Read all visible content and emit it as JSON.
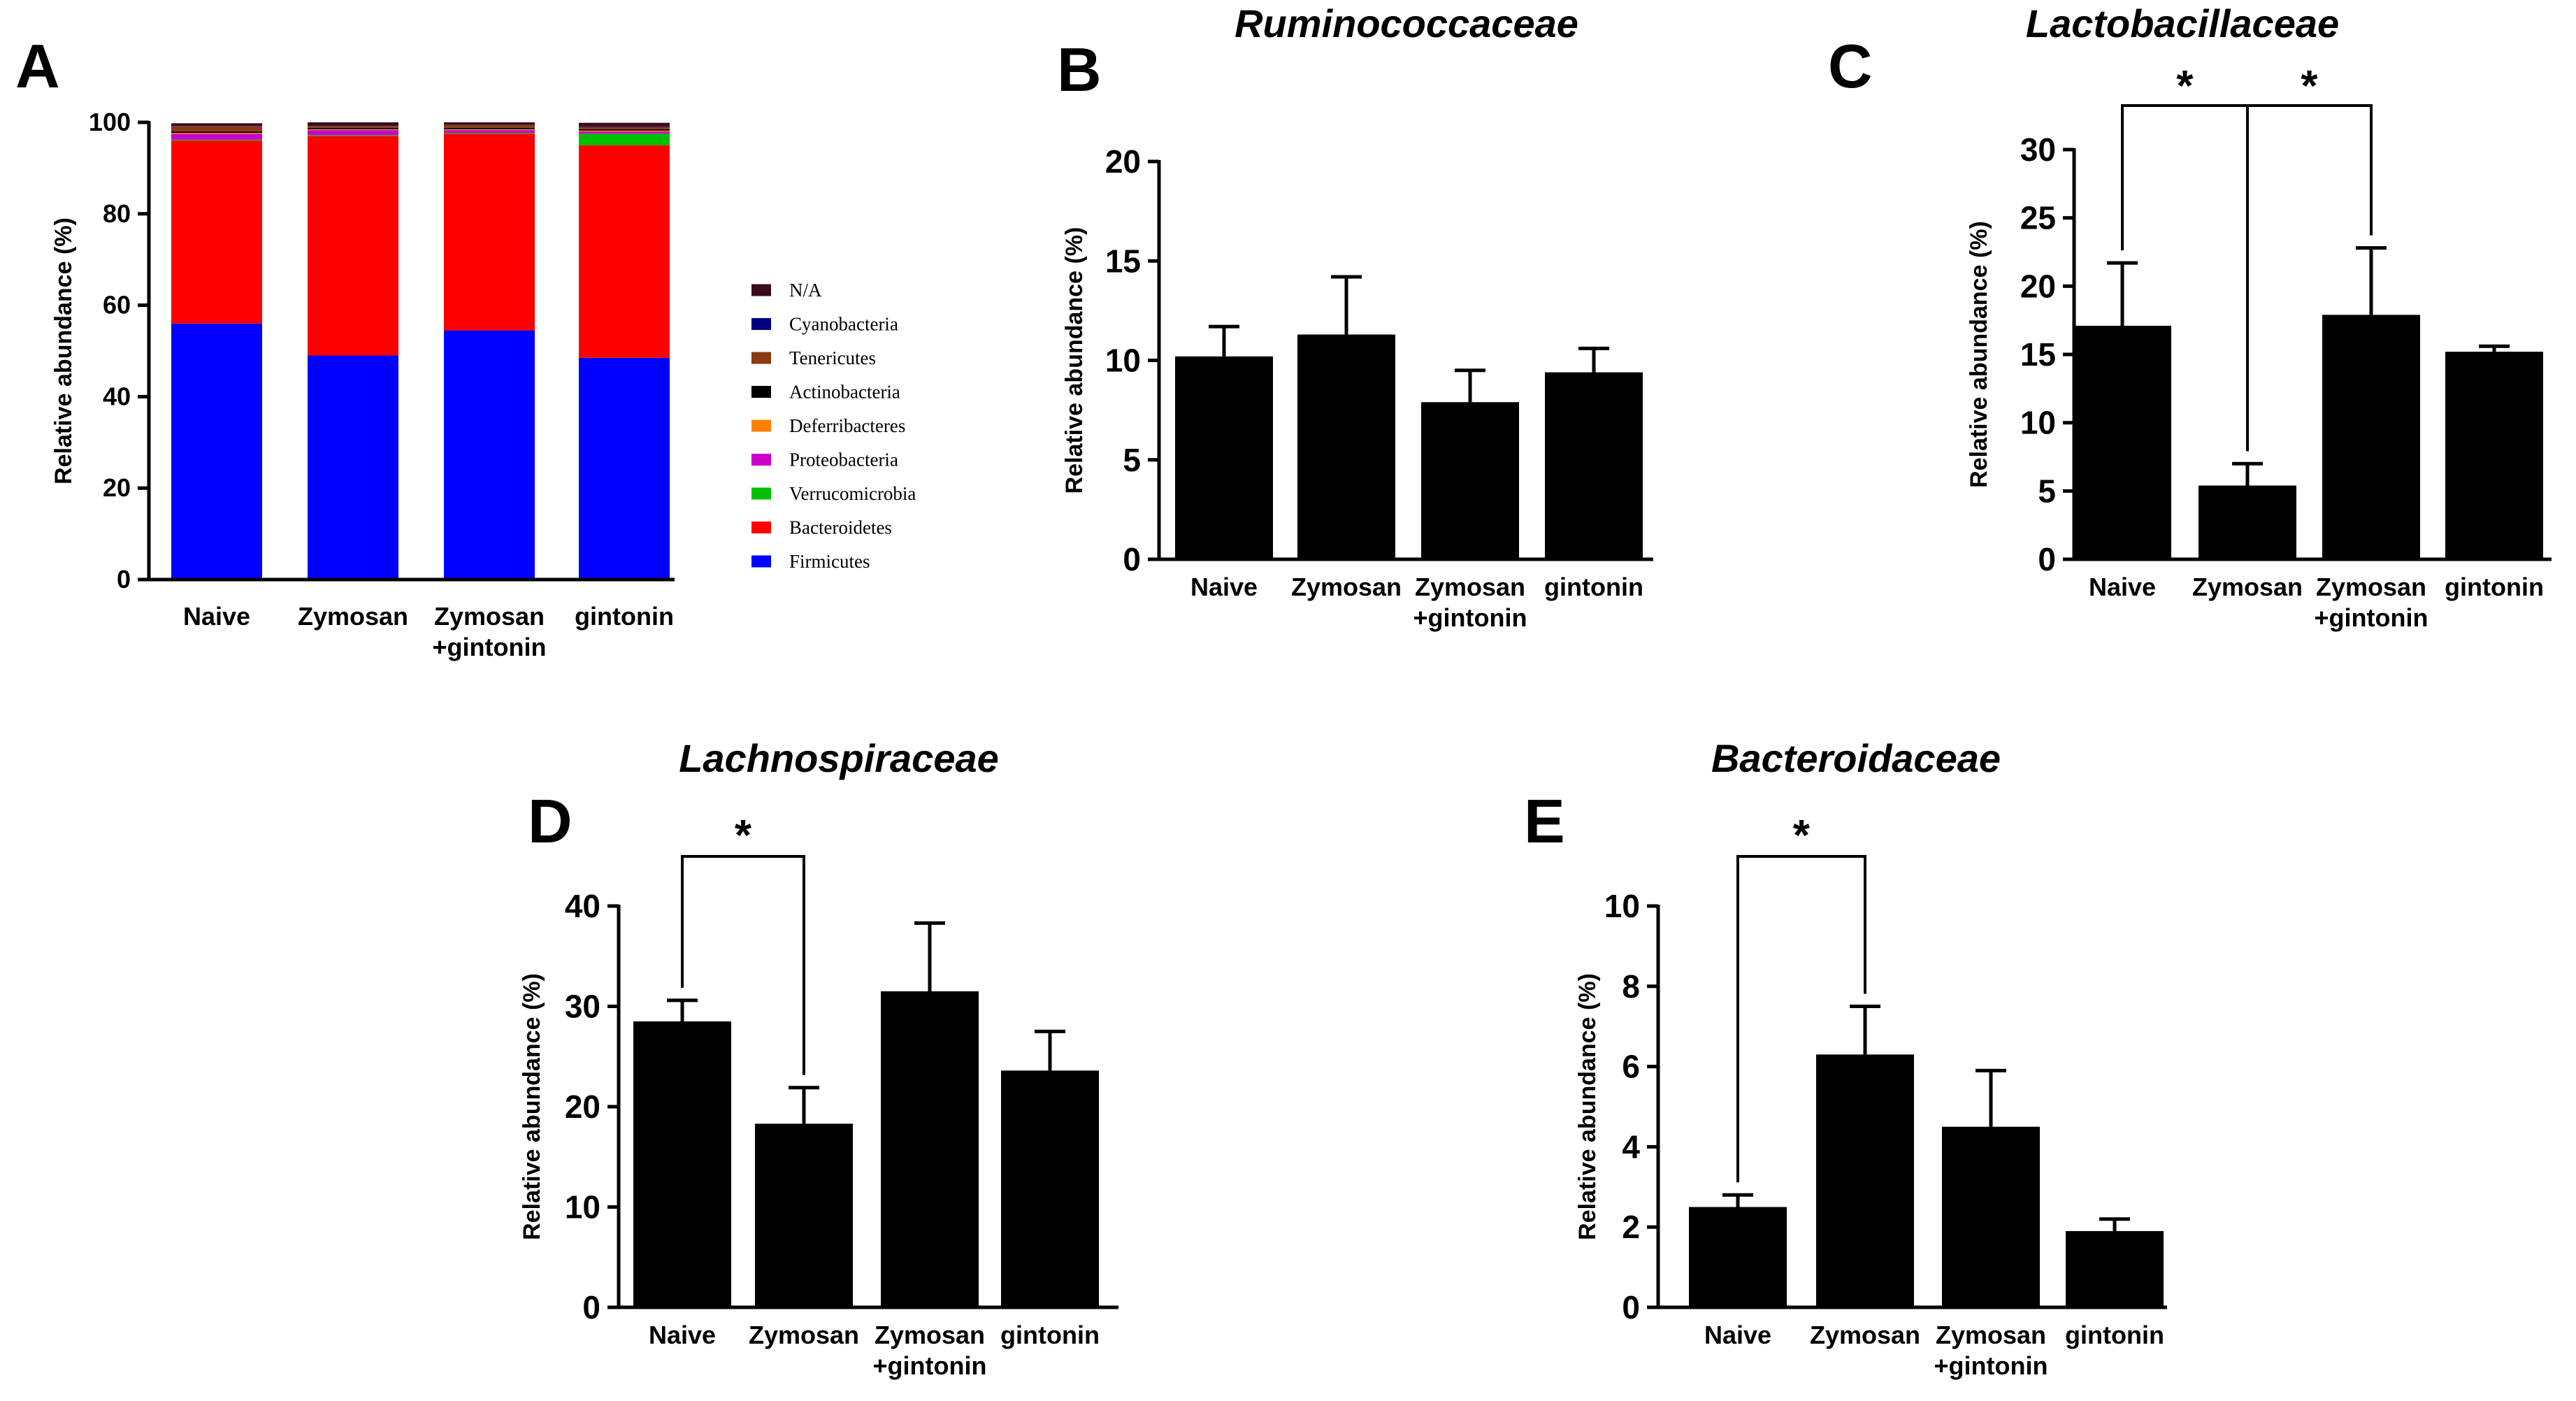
{
  "chart_data": [
    {
      "panel": "A",
      "type": "bar",
      "stacked": true,
      "title": "",
      "xlabel": "",
      "ylabel": "Relative abundance (%)",
      "ylim": [
        0,
        100
      ],
      "yticks": [
        "0",
        "20",
        "40",
        "60",
        "80",
        "100"
      ],
      "categories": [
        "Naive",
        "Zymosan",
        "Zymosan\n+gintonin",
        "gintonin"
      ],
      "legend_position": "right",
      "series": [
        {
          "name": "Firmicutes",
          "color": "#0000ff",
          "values": [
            56,
            49,
            54.5,
            48.5
          ]
        },
        {
          "name": "Bacteroidetes",
          "color": "#ff0000",
          "values": [
            40,
            48,
            43,
            46.5
          ]
        },
        {
          "name": "Verrucomicrobia",
          "color": "#00c000",
          "values": [
            0.2,
            0.2,
            0.2,
            2.5
          ]
        },
        {
          "name": "Proteobacteria",
          "color": "#cc00cc",
          "values": [
            1.3,
            1.1,
            0.6,
            0.5
          ]
        },
        {
          "name": "Deferribacteres",
          "color": "#ff8000",
          "values": [
            0.2,
            0.2,
            0.2,
            0.2
          ]
        },
        {
          "name": "Actinobacteria",
          "color": "#000000",
          "values": [
            0.3,
            0.3,
            0.3,
            0.3
          ]
        },
        {
          "name": "Tenericutes",
          "color": "#8b3a12",
          "values": [
            1.2,
            0.4,
            0.6,
            0.5
          ]
        },
        {
          "name": "Cyanobacteria",
          "color": "#000080",
          "values": [
            0.1,
            0.1,
            0.1,
            0.1
          ]
        },
        {
          "name": "N/A",
          "color": "#3a0a1a",
          "values": [
            0.5,
            0.7,
            0.5,
            0.8
          ]
        }
      ]
    },
    {
      "panel": "B",
      "type": "bar",
      "title": "Ruminococcaceae",
      "xlabel": "",
      "ylabel": "Relative abundance (%)",
      "ylim": [
        0,
        20
      ],
      "yticks": [
        "0",
        "5",
        "10",
        "15",
        "20"
      ],
      "categories": [
        "Naive",
        "Zymosan",
        "Zymosan\n+gintonin",
        "gintonin"
      ],
      "values": [
        10.2,
        11.3,
        7.9,
        9.4
      ],
      "errors": [
        1.5,
        2.9,
        1.6,
        1.2
      ],
      "significance": []
    },
    {
      "panel": "C",
      "type": "bar",
      "title": "Lactobacillaceae",
      "xlabel": "",
      "ylabel": "Relative abundance (%)",
      "ylim": [
        0,
        30
      ],
      "yticks": [
        "0",
        "5",
        "10",
        "15",
        "20",
        "25",
        "30"
      ],
      "categories": [
        "Naive",
        "Zymosan",
        "Zymosan\n+gintonin",
        "gintonin"
      ],
      "values": [
        17.1,
        5.4,
        17.9,
        15.2
      ],
      "errors": [
        4.6,
        1.6,
        4.9,
        0.4
      ],
      "significance": [
        {
          "from": 0,
          "to": 1,
          "label": "*"
        },
        {
          "from": 1,
          "to": 2,
          "label": "*"
        }
      ]
    },
    {
      "panel": "D",
      "type": "bar",
      "title": "Lachnospiraceae",
      "xlabel": "",
      "ylabel": "Relative abundance (%)",
      "ylim": [
        0,
        40
      ],
      "yticks": [
        "0",
        "10",
        "20",
        "30",
        "40"
      ],
      "categories": [
        "Naive",
        "Zymosan",
        "Zymosan\n+gintonin",
        "gintonin"
      ],
      "values": [
        28.5,
        18.3,
        31.5,
        23.6
      ],
      "errors": [
        2.1,
        3.6,
        6.8,
        3.9
      ],
      "significance": [
        {
          "from": 0,
          "to": 1,
          "label": "*"
        }
      ]
    },
    {
      "panel": "E",
      "type": "bar",
      "title": "Bacteroidaceae",
      "xlabel": "",
      "ylabel": "Relative abundance (%)",
      "ylim": [
        0,
        10
      ],
      "yticks": [
        "0",
        "2",
        "4",
        "6",
        "8",
        "10"
      ],
      "categories": [
        "Naive",
        "Zymosan",
        "Zymosan\n+gintonin",
        "gintonin"
      ],
      "values": [
        2.5,
        6.3,
        4.5,
        1.9
      ],
      "errors": [
        0.3,
        1.2,
        1.4,
        0.3
      ],
      "significance": [
        {
          "from": 0,
          "to": 1,
          "label": "*"
        }
      ]
    }
  ]
}
